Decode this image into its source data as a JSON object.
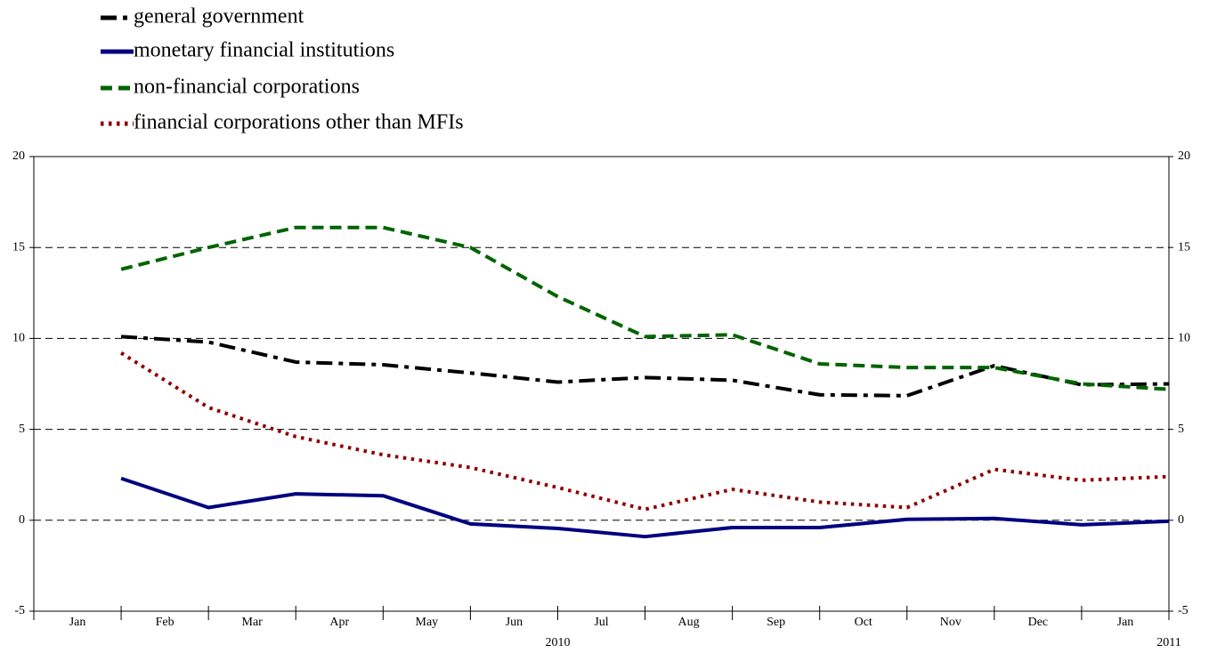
{
  "chart_data": {
    "type": "line",
    "categories": [
      "Jan",
      "Feb",
      "Mar",
      "Apr",
      "May",
      "Jun",
      "Jul",
      "Aug",
      "Sep",
      "Oct",
      "Nov",
      "Dec",
      "Jan"
    ],
    "x_groups": [
      "2010",
      "2011"
    ],
    "series": [
      {
        "name": "general government",
        "color": "#000000",
        "dash": "dash-dot",
        "values": [
          10.1,
          9.8,
          8.7,
          8.55,
          8.1,
          7.6,
          7.85,
          7.7,
          6.9,
          6.85,
          8.5,
          7.45,
          7.5
        ]
      },
      {
        "name": "monetary financial institutions",
        "color": "#000080",
        "dash": "solid",
        "values": [
          2.3,
          0.7,
          1.45,
          1.35,
          -0.2,
          -0.45,
          -0.9,
          -0.4,
          -0.4,
          0.05,
          0.1,
          -0.25,
          -0.05
        ]
      },
      {
        "name": "non-financial corporations",
        "color": "#006400",
        "dash": "dashed",
        "values": [
          13.8,
          15.0,
          16.1,
          16.1,
          15.0,
          12.3,
          10.1,
          10.2,
          8.6,
          8.4,
          8.4,
          7.5,
          7.2
        ]
      },
      {
        "name": "financial corporations other than MFIs",
        "color": "#8b0000",
        "dash": "dotted",
        "values": [
          9.2,
          6.2,
          4.6,
          3.6,
          2.9,
          1.8,
          0.6,
          1.7,
          1.0,
          0.7,
          2.8,
          2.2,
          2.4
        ]
      }
    ],
    "ylim": [
      -5,
      20
    ],
    "yticks": [
      -5,
      0,
      5,
      10,
      15,
      20
    ],
    "grid": true
  }
}
